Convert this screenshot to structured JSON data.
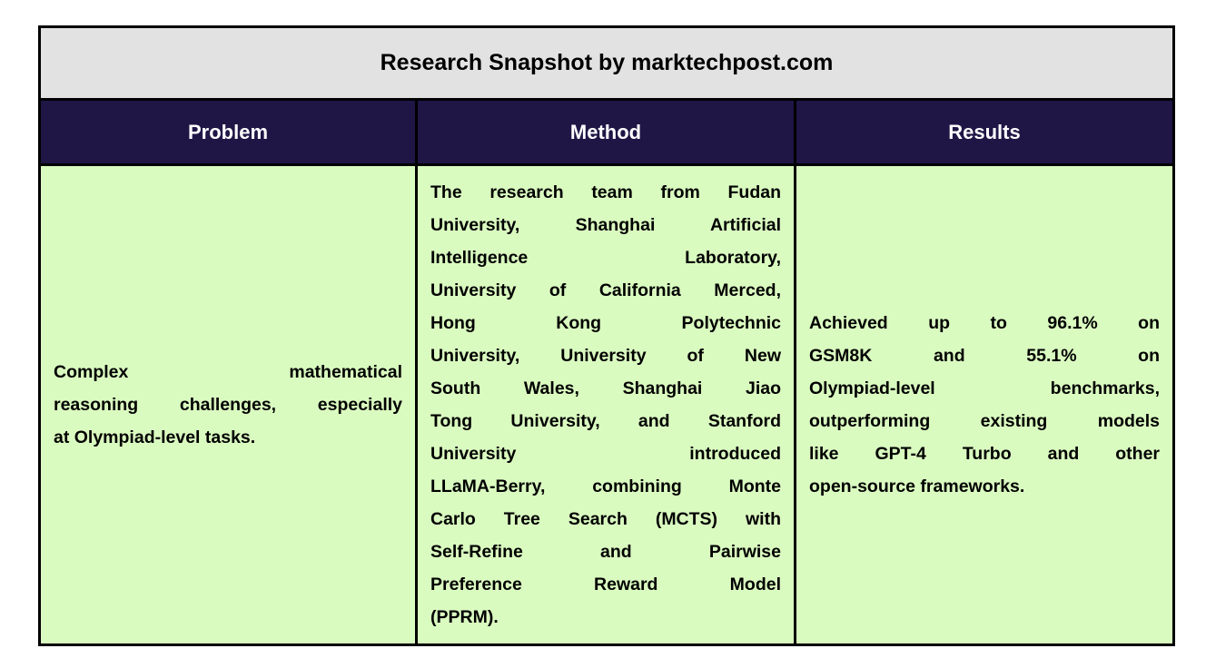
{
  "title": "Research Snapshot by marktechpost.com",
  "columns": [
    "Problem",
    "Method",
    "Results"
  ],
  "colors": {
    "title_bg": "#e2e2e2",
    "header_bg": "#1f1646",
    "cell_bg": "#dafbc0",
    "border": "#000000"
  },
  "cells": {
    "problem": [
      "Complex mathematical",
      "reasoning challenges, especially",
      "at Olympiad-level tasks."
    ],
    "method": [
      "The research team from Fudan",
      "University, Shanghai Artificial",
      "Intelligence Laboratory,",
      "University of California Merced,",
      "Hong Kong Polytechnic",
      "University, University of New",
      "South Wales, Shanghai Jiao",
      "Tong University, and Stanford",
      "University introduced",
      "LLaMA-Berry, combining Monte",
      "Carlo Tree Search (MCTS) with",
      "Self-Refine and Pairwise",
      "Preference Reward Model",
      "(PPRM)."
    ],
    "results": [
      "Achieved up to 96.1% on",
      "GSM8K and 55.1% on",
      "Olympiad-level benchmarks,",
      "outperforming existing models",
      "like GPT-4 Turbo and other",
      "open-source frameworks."
    ]
  }
}
